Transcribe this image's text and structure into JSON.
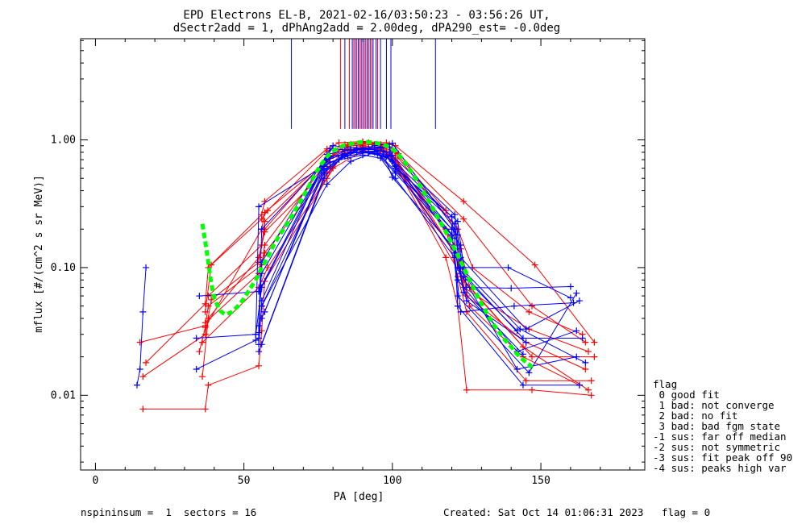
{
  "chart_data": {
    "type": "line",
    "title_line1": "EPD Electrons EL-B, 2021-02-16/03:50:23 - 03:56:26 UT,",
    "title_line2": "dSectr2add = 1, dPhAng2add = 2.00deg, dPA290_est=  -0.0deg",
    "xlabel": "PA [deg]",
    "ylabel": "mflux [#/(cm^2 s sr MeV)]",
    "xlim": [
      -5,
      185
    ],
    "ylim": [
      0.0026,
      6.2
    ],
    "yscale": "log",
    "x_ticks": [
      0,
      50,
      100,
      150
    ],
    "x_tick_labels": [
      "0",
      "50",
      "100",
      "150"
    ],
    "y_ticks": [
      0.01,
      0.1,
      1.0
    ],
    "y_tick_labels": [
      "0.01",
      "0.10",
      "1.00"
    ],
    "colors": {
      "red": "#ff0000",
      "blue": "#0000ff",
      "green": "#00ff00",
      "axis": "#000000"
    },
    "pa90_markers": {
      "y_range": [
        1.22,
        6.2
      ],
      "blue_x": [
        66,
        84,
        86.5,
        87.5,
        88.5,
        89.5,
        90.5,
        91.5,
        92.5,
        93.5,
        94.5,
        96,
        98,
        99.5,
        114.5
      ],
      "red_x": [
        82.5,
        85.5,
        87,
        88,
        89,
        90,
        91,
        92,
        93,
        95
      ]
    },
    "fit_curve": {
      "name": "fit",
      "x": [
        36,
        37,
        38,
        39,
        40,
        41,
        42,
        43,
        44,
        46,
        48,
        50,
        52,
        54,
        56,
        58,
        60,
        62,
        64,
        66,
        68,
        70,
        72,
        74,
        76,
        78,
        80,
        82,
        84,
        86,
        88,
        90,
        92,
        94,
        96,
        98,
        100,
        102,
        104,
        106,
        108,
        110,
        112,
        114,
        116,
        118,
        120,
        122,
        124,
        126,
        128,
        130,
        132,
        134,
        136,
        138,
        140,
        142,
        144,
        146,
        147
      ],
      "y": [
        0.22,
        0.16,
        0.11,
        0.075,
        0.058,
        0.051,
        0.046,
        0.044,
        0.043,
        0.045,
        0.05,
        0.057,
        0.068,
        0.08,
        0.1,
        0.12,
        0.15,
        0.18,
        0.21,
        0.25,
        0.3,
        0.36,
        0.44,
        0.54,
        0.64,
        0.74,
        0.82,
        0.87,
        0.91,
        0.93,
        0.95,
        0.96,
        0.96,
        0.95,
        0.93,
        0.9,
        0.85,
        0.77,
        0.68,
        0.58,
        0.49,
        0.41,
        0.34,
        0.28,
        0.23,
        0.19,
        0.155,
        0.125,
        0.1,
        0.08,
        0.064,
        0.052,
        0.043,
        0.036,
        0.031,
        0.027,
        0.024,
        0.021,
        0.019,
        0.0175,
        0.0165
      ]
    },
    "series": [
      {
        "color": "red",
        "x": [
          16,
          37,
          38,
          55,
          56,
          57,
          78,
          85,
          90,
          96,
          100,
          118,
          122,
          125,
          147,
          167
        ],
        "y": [
          0.0078,
          0.0078,
          0.012,
          0.017,
          0.032,
          0.078,
          0.5,
          0.9,
          0.95,
          0.92,
          0.7,
          0.12,
          0.05,
          0.011,
          0.011,
          0.01
        ]
      },
      {
        "color": "red",
        "x": [
          15,
          37,
          38,
          56,
          57,
          78,
          84,
          90,
          96,
          100,
          118,
          122,
          125,
          145,
          167
        ],
        "y": [
          0.026,
          0.035,
          0.05,
          0.105,
          0.15,
          0.68,
          0.92,
          0.96,
          0.92,
          0.76,
          0.2,
          0.085,
          0.045,
          0.013,
          0.013
        ]
      },
      {
        "color": "red",
        "x": [
          17,
          37,
          38,
          56,
          57,
          78,
          82,
          90,
          98,
          101,
          118,
          123,
          126,
          147,
          168
        ],
        "y": [
          0.018,
          0.052,
          0.1,
          0.26,
          0.33,
          0.85,
          0.95,
          0.97,
          0.95,
          0.8,
          0.28,
          0.14,
          0.07,
          0.02,
          0.02
        ]
      },
      {
        "color": "red",
        "x": [
          16,
          37,
          39,
          55,
          57,
          78,
          84,
          92,
          98,
          102,
          124,
          147,
          165
        ],
        "y": [
          0.014,
          0.03,
          0.056,
          0.11,
          0.2,
          0.72,
          0.88,
          0.94,
          0.9,
          0.78,
          0.24,
          0.05,
          0.026
        ]
      },
      {
        "color": "red",
        "x": [
          37,
          39,
          56,
          58,
          78,
          86,
          92,
          99,
          101,
          124,
          148,
          168
        ],
        "y": [
          0.045,
          0.105,
          0.24,
          0.28,
          0.82,
          0.92,
          0.95,
          0.92,
          0.9,
          0.33,
          0.105,
          0.026
        ]
      },
      {
        "color": "red",
        "x": [
          36,
          38,
          55,
          57,
          79,
          84,
          90,
          96,
          101,
          121,
          124,
          146,
          166
        ],
        "y": [
          0.014,
          0.04,
          0.12,
          0.19,
          0.62,
          0.84,
          0.9,
          0.86,
          0.72,
          0.15,
          0.07,
          0.033,
          0.022
        ]
      },
      {
        "color": "red",
        "x": [
          37,
          55,
          57,
          78,
          84,
          90,
          96,
          100,
          121,
          125,
          145,
          165
        ],
        "y": [
          0.037,
          0.09,
          0.13,
          0.55,
          0.78,
          0.88,
          0.84,
          0.68,
          0.13,
          0.06,
          0.026,
          0.016
        ]
      },
      {
        "color": "red",
        "x": [
          35,
          37,
          56,
          57,
          80,
          86,
          94,
          100,
          122,
          127,
          146,
          164
        ],
        "y": [
          0.022,
          0.034,
          0.2,
          0.27,
          0.75,
          0.9,
          0.92,
          0.82,
          0.2,
          0.1,
          0.045,
          0.03
        ]
      },
      {
        "color": "red",
        "x": [
          38,
          56,
          57,
          78,
          88,
          96,
          101,
          123,
          126,
          144,
          163
        ],
        "y": [
          0.06,
          0.15,
          0.23,
          0.69,
          0.86,
          0.85,
          0.7,
          0.11,
          0.05,
          0.02,
          0.012
        ]
      },
      {
        "color": "red",
        "x": [
          36,
          55,
          58,
          80,
          90,
          98,
          101,
          124,
          144,
          166
        ],
        "y": [
          0.026,
          0.07,
          0.1,
          0.6,
          0.82,
          0.8,
          0.67,
          0.08,
          0.024,
          0.011
        ]
      },
      {
        "color": "blue",
        "x": [
          14,
          15,
          16,
          17
        ],
        "y": [
          0.012,
          0.016,
          0.045,
          0.1
        ]
      },
      {
        "color": "blue",
        "x": [
          34,
          54,
          55,
          56,
          77,
          84,
          92,
          99,
          101,
          121,
          122,
          144,
          163
        ],
        "y": [
          0.016,
          0.027,
          0.028,
          0.05,
          0.55,
          0.75,
          0.85,
          0.88,
          0.6,
          0.13,
          0.05,
          0.012,
          0.012
        ]
      },
      {
        "color": "blue",
        "x": [
          34,
          54,
          56,
          77,
          86,
          94,
          100,
          121,
          123,
          142,
          162
        ],
        "y": [
          0.028,
          0.03,
          0.07,
          0.62,
          0.8,
          0.9,
          0.94,
          0.2,
          0.09,
          0.016,
          0.02
        ]
      },
      {
        "color": "blue",
        "x": [
          35,
          55,
          56,
          78,
          84,
          90,
          97,
          100,
          120,
          122,
          144,
          164
        ],
        "y": [
          0.06,
          0.065,
          0.09,
          0.7,
          0.82,
          0.86,
          0.82,
          0.7,
          0.25,
          0.1,
          0.028,
          0.028
        ]
      },
      {
        "color": "blue",
        "x": [
          55,
          56,
          78,
          86,
          92,
          99,
          101,
          121,
          123,
          143,
          165
        ],
        "y": [
          0.031,
          0.11,
          0.77,
          0.84,
          0.85,
          0.8,
          0.62,
          0.22,
          0.1,
          0.033,
          0.018
        ]
      },
      {
        "color": "blue",
        "x": [
          55,
          56,
          79,
          88,
          95,
          101,
          120,
          122,
          142,
          162
        ],
        "y": [
          0.035,
          0.2,
          0.74,
          0.8,
          0.78,
          0.55,
          0.18,
          0.08,
          0.022,
          0.032
        ]
      },
      {
        "color": "blue",
        "x": [
          55,
          56,
          78,
          86,
          94,
          100,
          121,
          123,
          145,
          163
        ],
        "y": [
          0.025,
          0.05,
          0.45,
          0.68,
          0.8,
          0.75,
          0.26,
          0.12,
          0.033,
          0.055
        ]
      },
      {
        "color": "blue",
        "x": [
          54,
          55,
          79,
          85,
          92,
          100,
          120,
          122,
          146,
          162
        ],
        "y": [
          0.03,
          0.3,
          0.67,
          0.75,
          0.8,
          0.7,
          0.2,
          0.06,
          0.015,
          0.063
        ]
      },
      {
        "color": "blue",
        "x": [
          56,
          77,
          82,
          90,
          96,
          101,
          121,
          123,
          141,
          161
        ],
        "y": [
          0.025,
          0.5,
          0.7,
          0.76,
          0.72,
          0.5,
          0.12,
          0.045,
          0.05,
          0.053
        ]
      },
      {
        "color": "blue",
        "x": [
          55,
          78,
          84,
          90,
          98,
          101,
          122,
          124,
          139,
          160
        ],
        "y": [
          0.022,
          0.6,
          0.78,
          0.8,
          0.74,
          0.6,
          0.23,
          0.1,
          0.1,
          0.058
        ]
      },
      {
        "color": "blue",
        "x": [
          56,
          77,
          84,
          92,
          98,
          101,
          123,
          125,
          140,
          160
        ],
        "y": [
          0.04,
          0.58,
          0.74,
          0.8,
          0.75,
          0.63,
          0.15,
          0.07,
          0.069,
          0.071
        ]
      },
      {
        "color": "blue",
        "x": [
          56,
          79,
          87,
          94,
          101,
          122,
          124,
          142
        ],
        "y": [
          0.055,
          0.85,
          0.83,
          0.84,
          0.57,
          0.18,
          0.085,
          0.032
        ]
      },
      {
        "color": "blue",
        "x": [
          55,
          80,
          88,
          96,
          100,
          121,
          124,
          144
        ],
        "y": [
          0.065,
          0.9,
          0.86,
          0.88,
          0.51,
          0.14,
          0.064,
          0.021
        ]
      },
      {
        "color": "blue",
        "x": [
          57,
          78,
          86,
          95,
          100,
          120,
          125,
          145
        ],
        "y": [
          0.045,
          0.7,
          0.8,
          0.82,
          0.68,
          0.17,
          0.055,
          0.026
        ]
      }
    ]
  },
  "legend": {
    "title": "flag",
    "items": [
      " 0 good fit",
      " 1 bad: not converge",
      " 2 bad: no fit",
      " 3 bad: bad fgm state",
      "-1 sus: far off median",
      "-2 sus: not symmetric",
      "-3 sus: fit peak off 90",
      "-4 sus: peaks high var"
    ]
  },
  "footer": {
    "left": "nspininsum =  1  sectors = 16",
    "right": "Created: Sat Oct 14 01:06:31 2023   flag = 0"
  }
}
